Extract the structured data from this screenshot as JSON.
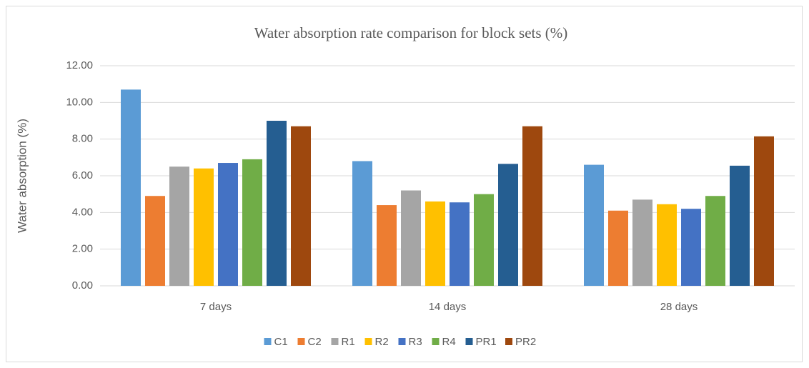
{
  "chart_data": {
    "type": "bar",
    "title": "Water absorption rate comparison for block sets (%)",
    "y_label": "Water absorption (%)",
    "categories": [
      "7 days",
      "14 days",
      "28 days"
    ],
    "series": [
      {
        "name": "C1",
        "color": "#5b9bd5",
        "values": [
          10.7,
          6.8,
          6.6
        ]
      },
      {
        "name": "C2",
        "color": "#ed7d31",
        "values": [
          4.9,
          4.4,
          4.1
        ]
      },
      {
        "name": "R1",
        "color": "#a5a5a5",
        "values": [
          6.5,
          5.2,
          4.7
        ]
      },
      {
        "name": "R2",
        "color": "#ffc000",
        "values": [
          6.4,
          4.6,
          4.45
        ]
      },
      {
        "name": "R3",
        "color": "#4472c4",
        "values": [
          6.7,
          4.55,
          4.2
        ]
      },
      {
        "name": "R4",
        "color": "#70ad47",
        "values": [
          6.9,
          5.0,
          4.9
        ]
      },
      {
        "name": "PR1",
        "color": "#255e91",
        "values": [
          9.0,
          6.65,
          6.55
        ]
      },
      {
        "name": "PR2",
        "color": "#9e480e",
        "values": [
          8.7,
          8.7,
          8.15
        ]
      }
    ],
    "ylim": [
      0,
      12
    ],
    "yticks": [
      {
        "value": 0,
        "label": "0.00"
      },
      {
        "value": 2,
        "label": "2.00"
      },
      {
        "value": 4,
        "label": "4.00"
      },
      {
        "value": 6,
        "label": "6.00"
      },
      {
        "value": 8,
        "label": "8.00"
      },
      {
        "value": 10,
        "label": "10.00"
      },
      {
        "value": 12,
        "label": "12.00"
      }
    ],
    "grid": true,
    "legend": "bottom"
  }
}
